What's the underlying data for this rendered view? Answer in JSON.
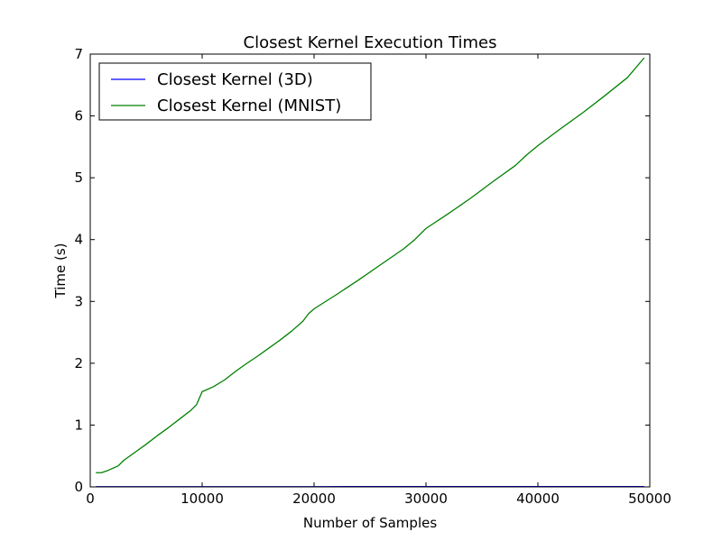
{
  "chart_data": {
    "type": "line",
    "title": "Closest Kernel Execution Times",
    "xlabel": "Number of Samples",
    "ylabel": "Time (s)",
    "xlim": [
      0,
      50000
    ],
    "ylim": [
      0,
      7
    ],
    "xticks": [
      0,
      10000,
      20000,
      30000,
      40000,
      50000
    ],
    "yticks": [
      0,
      1,
      2,
      3,
      4,
      5,
      6,
      7
    ],
    "grid": false,
    "legend_position": "top-left",
    "series": [
      {
        "name": "Closest Kernel (3D)",
        "color": "#0000ff",
        "x": [
          500,
          5000,
          10000,
          20000,
          30000,
          40000,
          49500
        ],
        "y": [
          0.003,
          0.003,
          0.004,
          0.004,
          0.005,
          0.005,
          0.006
        ]
      },
      {
        "name": "Closest Kernel (MNIST)",
        "color": "#008000",
        "x": [
          500,
          1000,
          1500,
          2000,
          2500,
          3000,
          4000,
          5000,
          6000,
          7000,
          8000,
          9000,
          9500,
          10000,
          11000,
          12000,
          13000,
          14000,
          15000,
          16000,
          17000,
          18000,
          19000,
          19500,
          20000,
          22000,
          24000,
          26000,
          28000,
          29000,
          30000,
          32000,
          34000,
          36000,
          38000,
          39000,
          40000,
          42000,
          44000,
          46000,
          48000,
          49500
        ],
        "y": [
          0.23,
          0.23,
          0.26,
          0.3,
          0.34,
          0.43,
          0.56,
          0.69,
          0.83,
          0.96,
          1.1,
          1.24,
          1.33,
          1.54,
          1.62,
          1.73,
          1.87,
          2.0,
          2.12,
          2.25,
          2.38,
          2.52,
          2.68,
          2.8,
          2.88,
          3.11,
          3.35,
          3.6,
          3.85,
          4.0,
          4.18,
          4.42,
          4.67,
          4.94,
          5.2,
          5.37,
          5.52,
          5.79,
          6.05,
          6.33,
          6.62,
          6.94
        ]
      }
    ]
  }
}
